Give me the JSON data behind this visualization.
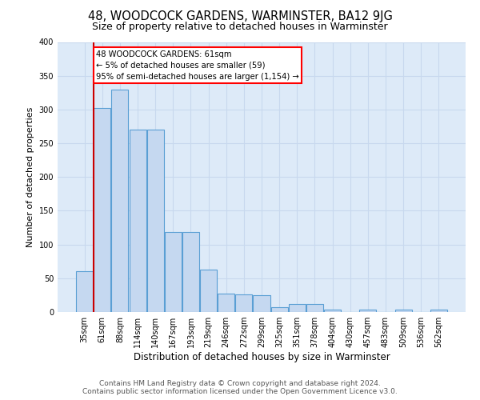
{
  "title": "48, WOODCOCK GARDENS, WARMINSTER, BA12 9JG",
  "subtitle": "Size of property relative to detached houses in Warminster",
  "xlabel": "Distribution of detached houses by size in Warminster",
  "ylabel": "Number of detached properties",
  "categories": [
    "35sqm",
    "61sqm",
    "88sqm",
    "114sqm",
    "140sqm",
    "167sqm",
    "193sqm",
    "219sqm",
    "246sqm",
    "272sqm",
    "299sqm",
    "325sqm",
    "351sqm",
    "378sqm",
    "404sqm",
    "430sqm",
    "457sqm",
    "483sqm",
    "509sqm",
    "536sqm",
    "562sqm"
  ],
  "values": [
    60,
    302,
    330,
    270,
    270,
    118,
    118,
    63,
    27,
    26,
    25,
    7,
    12,
    12,
    4,
    0,
    3,
    0,
    3,
    0,
    3
  ],
  "bar_color": "#c5d8f0",
  "bar_edge_color": "#5a9fd4",
  "red_line_x": 1,
  "annotation_text": "48 WOODCOCK GARDENS: 61sqm\n← 5% of detached houses are smaller (59)\n95% of semi-detached houses are larger (1,154) →",
  "annotation_box_color": "white",
  "annotation_box_edge_color": "red",
  "red_line_color": "#cc0000",
  "grid_color": "#c8d8ee",
  "background_color": "#ddeaf8",
  "footer_text": "Contains HM Land Registry data © Crown copyright and database right 2024.\nContains public sector information licensed under the Open Government Licence v3.0.",
  "ylim": [
    0,
    400
  ],
  "yticks": [
    0,
    50,
    100,
    150,
    200,
    250,
    300,
    350,
    400
  ]
}
